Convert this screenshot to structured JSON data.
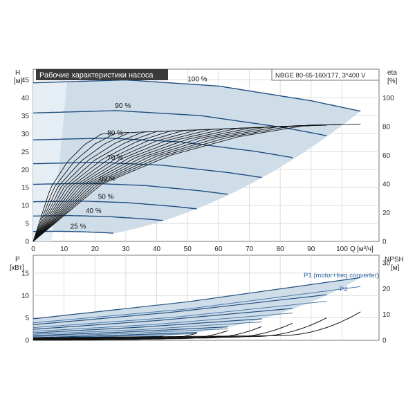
{
  "chart_data": [
    {
      "type": "line",
      "title": "Рабочие характеристики насоса",
      "model": "NBGE 80-65-160/177, 3*400 V",
      "left_axis": {
        "name": "H",
        "unit": "[м]",
        "ticks": [
          0,
          5,
          10,
          15,
          20,
          25,
          30,
          35,
          40,
          45
        ],
        "range": [
          0,
          48
        ]
      },
      "right_axis": {
        "name": "eta",
        "unit": "[%]",
        "ticks": [
          0,
          20,
          40,
          60,
          80,
          100
        ]
      },
      "x_axis": {
        "name": "Q",
        "unit": "[м³/ч]",
        "ticks": [
          0,
          10,
          20,
          30,
          40,
          50,
          60,
          70,
          80,
          90,
          100
        ],
        "range": [
          0,
          112
        ]
      },
      "speed_labels": [
        "100 %",
        "90 %",
        "80 %",
        "70 %",
        "60 %",
        "50 %",
        "40 %",
        "25 %"
      ],
      "speeds": [
        1.0,
        0.9,
        0.8,
        0.7,
        0.6,
        0.5,
        0.4,
        0.25
      ],
      "head_curve_100": {
        "shutoff_head": 44.2,
        "q": [
          0,
          30,
          60,
          90,
          106
        ],
        "h": [
          44.2,
          45.0,
          43.3,
          39.2,
          36.3
        ]
      },
      "efficiency_curve_100": {
        "q": [
          0,
          20,
          40,
          60,
          80,
          100,
          106
        ],
        "eta": [
          0,
          40,
          60,
          73,
          81,
          82,
          82
        ]
      }
    },
    {
      "type": "line",
      "left_axis": {
        "name": "P",
        "unit": "[кВт]",
        "ticks": [
          0,
          5,
          10,
          15
        ],
        "range": [
          0,
          19
        ]
      },
      "right_axis": {
        "name": "NPSH",
        "unit": "[м]",
        "ticks": [
          0,
          10,
          20,
          30
        ]
      },
      "x_range": [
        0,
        112
      ],
      "series": [
        {
          "name": "P1 (motor+freq.converter)",
          "q": [
            0,
            50,
            106
          ],
          "p": [
            4.8,
            8.6,
            14.0
          ]
        },
        {
          "name": "P2",
          "q": [
            0,
            50,
            106
          ],
          "p": [
            3.9,
            7.0,
            12.0
          ]
        }
      ],
      "npsh_100": {
        "q": [
          40,
          60,
          80,
          106
        ],
        "npsh": [
          1.0,
          1.5,
          3.0,
          12.0
        ]
      }
    }
  ]
}
